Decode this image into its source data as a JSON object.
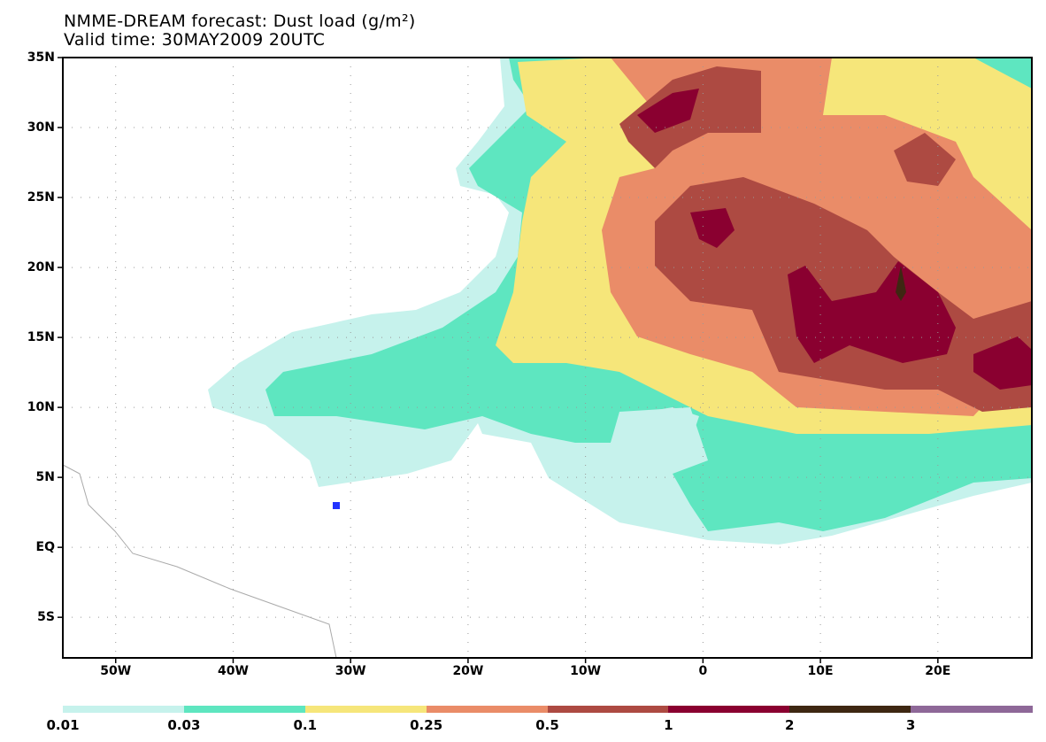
{
  "title": "NMME-DREAM forecast: Dust load (g/m²)",
  "valid_time": "Valid time: 30MAY2009 20UTC",
  "map": {
    "lon_range": [
      -54.5,
      28.0
    ],
    "lat_range": [
      -7.9,
      35
    ],
    "lon_ticks": [
      {
        "value": -50,
        "label": "50W"
      },
      {
        "value": -40,
        "label": "40W"
      },
      {
        "value": -30,
        "label": "30W"
      },
      {
        "value": -20,
        "label": "20W"
      },
      {
        "value": -10,
        "label": "10W"
      },
      {
        "value": 0,
        "label": "0"
      },
      {
        "value": 10,
        "label": "10E"
      },
      {
        "value": 20,
        "label": "20E"
      }
    ],
    "lat_ticks": [
      {
        "value": 35,
        "label": "35N"
      },
      {
        "value": 30,
        "label": "30N"
      },
      {
        "value": 25,
        "label": "25N"
      },
      {
        "value": 20,
        "label": "20N"
      },
      {
        "value": 15,
        "label": "15N"
      },
      {
        "value": 10,
        "label": "10N"
      },
      {
        "value": 5,
        "label": "5N"
      },
      {
        "value": 0,
        "label": "EQ"
      },
      {
        "value": -5,
        "label": "5S"
      }
    ],
    "marker_color": "#2233ff"
  },
  "legend": {
    "labels": [
      "0.01",
      "0.03",
      "0.1",
      "0.25",
      "0.5",
      "1",
      "2",
      "3"
    ],
    "colors": [
      "#c6f2ec",
      "#5ee6c0",
      "#f6e67a",
      "#ea8c68",
      "#ad4a42",
      "#8a0030",
      "#3e2712",
      "#8e6898"
    ]
  }
}
